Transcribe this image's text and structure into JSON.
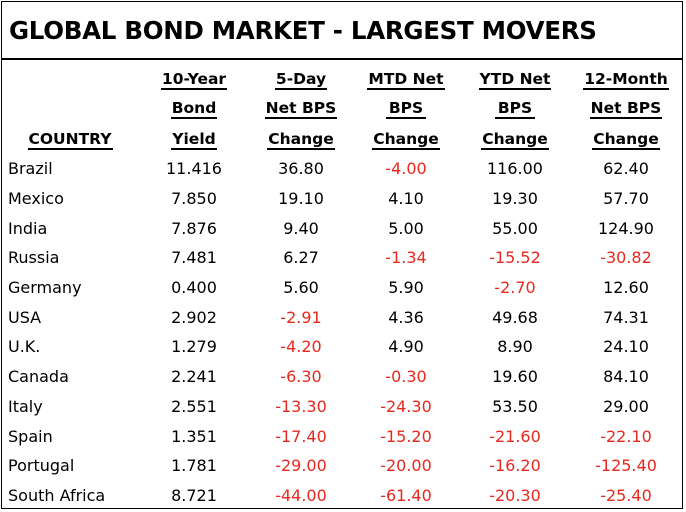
{
  "title": "GLOBAL BOND MARKET - LARGEST MOVERS",
  "header": {
    "country": "COUNTRY",
    "col1": [
      "10-Year",
      "Bond",
      "Yield"
    ],
    "col2": [
      "5-Day",
      "Net BPS",
      "Change"
    ],
    "col3": [
      "MTD Net",
      "BPS",
      "Change"
    ],
    "col4": [
      "YTD Net",
      "BPS",
      "Change"
    ],
    "col5": [
      "12-Month",
      "Net BPS",
      "Change"
    ]
  },
  "colors": {
    "negative": "#e8281e",
    "text": "#000000"
  },
  "rows": [
    [
      "Brazil",
      "11.416",
      "36.80",
      "-4.00",
      "116.00",
      "62.40"
    ],
    [
      "Mexico",
      "7.850",
      "19.10",
      "4.10",
      "19.30",
      "57.70"
    ],
    [
      "India",
      "7.876",
      "9.40",
      "5.00",
      "55.00",
      "124.90"
    ],
    [
      "Russia",
      "7.481",
      "6.27",
      "-1.34",
      "-15.52",
      "-30.82"
    ],
    [
      "Germany",
      "0.400",
      "5.60",
      "5.90",
      "-2.70",
      "12.60"
    ],
    [
      "USA",
      "2.902",
      "-2.91",
      "4.36",
      "49.68",
      "74.31"
    ],
    [
      "U.K.",
      "1.279",
      "-4.20",
      "4.90",
      "8.90",
      "24.10"
    ],
    [
      "Canada",
      "2.241",
      "-6.30",
      "-0.30",
      "19.60",
      "84.10"
    ],
    [
      "Italy",
      "2.551",
      "-13.30",
      "-24.30",
      "53.50",
      "29.00"
    ],
    [
      "Spain",
      "1.351",
      "-17.40",
      "-15.20",
      "-21.60",
      "-22.10"
    ],
    [
      "Portugal",
      "1.781",
      "-29.00",
      "-20.00",
      "-16.20",
      "-125.40"
    ],
    [
      "South Africa",
      "8.721",
      "-44.00",
      "-61.40",
      "-20.30",
      "-25.40"
    ]
  ]
}
